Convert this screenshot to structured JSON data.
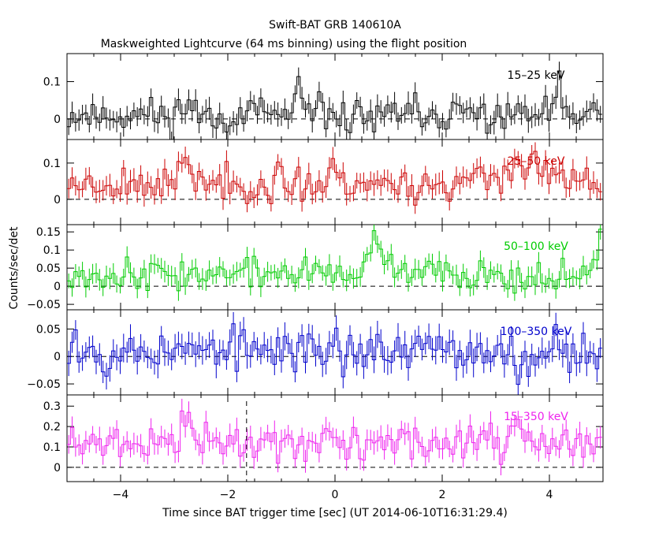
{
  "chart_data": {
    "type": "line",
    "title": "Swift-BAT GRB 140610A",
    "subtitle": "Maskweighted Lightcurve (64 ms binning) using the flight position",
    "xlabel": "Time since BAT trigger time [sec] (UT 2014-06-10T16:31:29.4)",
    "ylabel": "Counts/sec/det",
    "xlim": [
      -5.0,
      5.0
    ],
    "xticks": [
      -4,
      -2,
      0,
      2,
      4
    ],
    "bin_width": 0.064,
    "vline_x": -1.65,
    "panels": [
      {
        "name": "15-25 keV",
        "label": "15–25 keV",
        "color": "#000000",
        "ylim": [
          -0.055,
          0.175
        ],
        "yticks": [
          0,
          0.1
        ],
        "ytick_labels": [
          "0",
          "0.1"
        ],
        "baseline": 0.01,
        "noise": 0.022,
        "err": 0.027,
        "seed": 11,
        "features": [
          [
            -2.75,
            0.04,
            0.12
          ],
          [
            -0.7,
            0.07,
            0.05
          ],
          [
            0.75,
            -0.03,
            0.07
          ],
          [
            4.15,
            0.06,
            0.1
          ]
        ]
      },
      {
        "name": "25-50 keV",
        "label": "25–50 keV",
        "color": "#cc0000",
        "ylim": [
          -0.07,
          0.165
        ],
        "yticks": [
          0,
          0.1
        ],
        "ytick_labels": [
          "0",
          "0.1"
        ],
        "baseline": 0.045,
        "noise": 0.022,
        "err": 0.027,
        "seed": 23,
        "features": [
          [
            -2.75,
            0.06,
            0.12
          ],
          [
            -1.2,
            -0.06,
            0.06
          ],
          [
            -0.05,
            0.07,
            0.06
          ],
          [
            1.5,
            -0.04,
            0.06
          ],
          [
            3.5,
            0.05,
            0.5
          ]
        ]
      },
      {
        "name": "50-100 keV",
        "label": "50–100 keV",
        "color": "#00cc00",
        "ylim": [
          -0.065,
          0.17
        ],
        "yticks": [
          -0.05,
          0,
          0.05,
          0.1,
          0.15
        ],
        "ytick_labels": [
          "−0.05",
          "0",
          "0.05",
          "0.1",
          "0.15"
        ],
        "baseline": 0.035,
        "noise": 0.02,
        "err": 0.025,
        "seed": 37,
        "features": [
          [
            0.75,
            0.08,
            0.18
          ],
          [
            3.7,
            -0.05,
            0.06
          ],
          [
            4.95,
            0.07,
            0.08
          ]
        ]
      },
      {
        "name": "100-350 keV",
        "label": "100–350 keV",
        "color": "#0000cc",
        "ylim": [
          -0.07,
          0.085
        ],
        "yticks": [
          -0.05,
          0,
          0.05
        ],
        "ytick_labels": [
          "−0.05",
          "0",
          "0.05"
        ],
        "baseline": 0.01,
        "noise": 0.018,
        "err": 0.022,
        "seed": 53,
        "features": [
          [
            0.0,
            0.05,
            0.05
          ],
          [
            3.4,
            -0.05,
            0.06
          ],
          [
            -4.9,
            0.03,
            0.1
          ]
        ]
      },
      {
        "name": "15-350 keV",
        "label": "15–350 keV",
        "color": "#ee22ee",
        "ylim": [
          -0.07,
          0.355
        ],
        "yticks": [
          0,
          0.1,
          0.2,
          0.3
        ],
        "ytick_labels": [
          "0",
          "0.1",
          "0.2",
          "0.3"
        ],
        "baseline": 0.12,
        "noise": 0.04,
        "err": 0.05,
        "seed": 71,
        "features": [
          [
            -2.75,
            0.15,
            0.12
          ],
          [
            -4.7,
            -0.06,
            0.08
          ],
          [
            3.4,
            0.1,
            0.08
          ]
        ]
      }
    ]
  }
}
